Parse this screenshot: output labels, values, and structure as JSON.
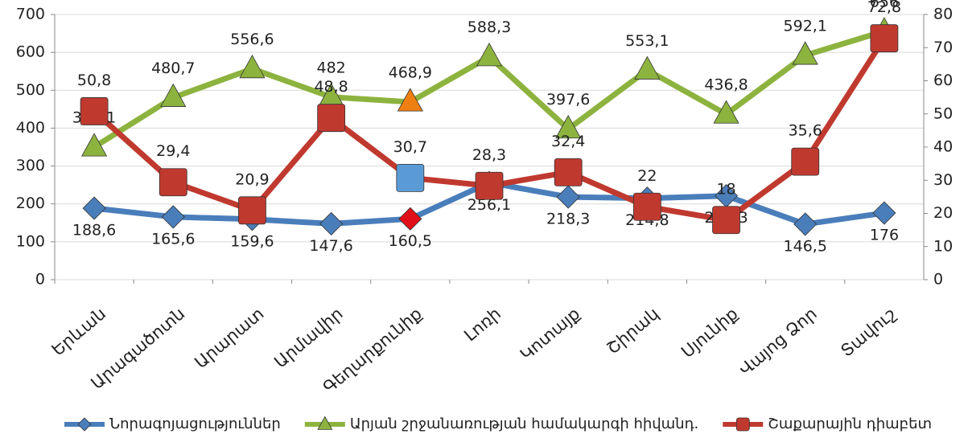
{
  "chart_data": {
    "type": "line",
    "categories": [
      "Երևան",
      "Արագածոտն",
      "Արարատ",
      "Արմավիր",
      "Գեղարքունիք",
      "Լոռի",
      "Կոտայք",
      "Շիրակ",
      "Սյունիք",
      "Վայոց Ձոր",
      "Տավուշ"
    ],
    "series": [
      {
        "name": "Նորագոյացություններ",
        "color": "#4a7ebb",
        "marker": "diamond",
        "highlight_color": "#e0101a",
        "values": [
          188.6,
          165.6,
          159.6,
          147.6,
          160.5,
          256.1,
          218.3,
          214.8,
          221.3,
          146.5,
          176
        ],
        "value_labels": [
          "188,6",
          "165,6",
          "159,6",
          "147,6",
          "160,5",
          "256,1",
          "218,3",
          "214,8",
          "221,3",
          "146,5",
          "176"
        ]
      },
      {
        "name": "Արյան շրջանառության համակարգի հիվանդ.",
        "color": "#8db33f",
        "marker": "triangle",
        "highlight_color": "#f07f12",
        "values": [
          350.1,
          480.7,
          556.6,
          482,
          468.9,
          588.3,
          397.6,
          553.1,
          436.8,
          592.1,
          656
        ],
        "value_labels": [
          "350,1",
          "480,7",
          "556,6",
          "482",
          "468,9",
          "588,3",
          "397,6",
          "553,1",
          "436,8",
          "592,1",
          "656"
        ]
      },
      {
        "name": "Շաքարային դիաբետ",
        "color": "#c0392f",
        "marker": "square",
        "axis": "y2",
        "highlight_color": "#5b9bd5",
        "values": [
          50.8,
          29.4,
          20.9,
          48.8,
          30.7,
          28.3,
          32.4,
          22,
          18,
          35.6,
          72.8
        ],
        "value_labels": [
          "50,8",
          "29,4",
          "20,9",
          "48,8",
          "30,7",
          "28,3",
          "32,4",
          "22",
          "18",
          "35,6",
          "72,8"
        ]
      }
    ],
    "highlight_index": 4,
    "ylim": [
      0,
      700
    ],
    "yticks": [
      0,
      100,
      200,
      300,
      400,
      500,
      600,
      700
    ],
    "y2lim": [
      0,
      80
    ],
    "y2ticks": [
      0,
      10,
      20,
      30,
      40,
      50,
      60,
      70,
      80
    ],
    "grid": true,
    "legend": "bottom"
  }
}
